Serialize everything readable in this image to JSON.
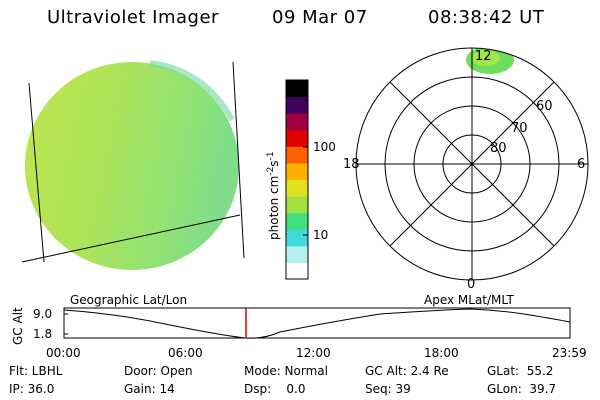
{
  "header": {
    "instrument": "Ultraviolet Imager",
    "date": "09 Mar 07",
    "time": "08:38:42 UT"
  },
  "colorbar": {
    "unit_label": "photon cm-2s-1",
    "ticks": [
      "100",
      "10"
    ],
    "log_scale": true,
    "colors": [
      "#ffffff",
      "#b4f0f0",
      "#40d8d8",
      "#40e080",
      "#a0e040",
      "#e0e020",
      "#ffb000",
      "#ff6000",
      "#e00000",
      "#a00040",
      "#400060",
      "#000000"
    ]
  },
  "polar": {
    "mlt_labels": {
      "top": "12",
      "left": "18",
      "right": "6",
      "bottom": "0"
    },
    "lat_labels": [
      "60",
      "70",
      "80"
    ]
  },
  "timeline": {
    "left_title": "Geographic Lat/Lon",
    "right_title": "Apex MLat/MLT",
    "y_label": "GC Alt",
    "y_ticks": [
      "9.0",
      "1.8"
    ],
    "x_ticks": [
      "00:00",
      "06:00",
      "12:00",
      "18:00",
      "23:59"
    ],
    "cursor_time": "08:38",
    "cursor_color": "#e00000"
  },
  "info": {
    "flt": "Flt: LBHL",
    "ip": "IP: 36.0",
    "door": "Door: Open",
    "gain": "Gain: 14",
    "mode": "Mode: Normal",
    "dsp": "Dsp:    0.0",
    "gc_alt": "GC Alt: 2.4 Re",
    "seq": "Seq: 39",
    "glat": "GLat:  55.2",
    "glon": "GLon:  39.7"
  }
}
